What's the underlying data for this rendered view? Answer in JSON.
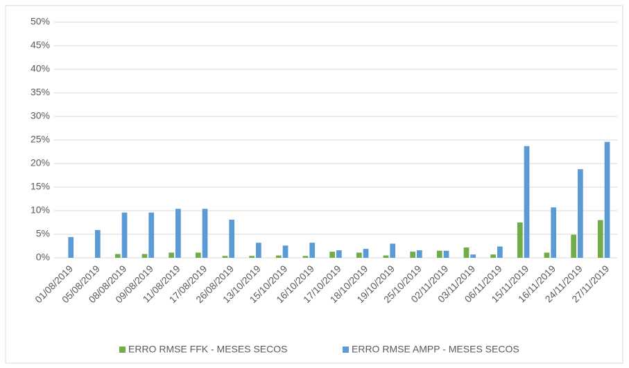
{
  "chart_data": {
    "type": "bar",
    "categories": [
      "01/08/2019",
      "05/08/2019",
      "08/08/2019",
      "09/08/2019",
      "11/08/2019",
      "17/08/2019",
      "26/08/2019",
      "13/10/2019",
      "15/10/2019",
      "16/10/2019",
      "17/10/2019",
      "18/10/2019",
      "19/10/2019",
      "25/10/2019",
      "02/11/2019",
      "03/11/2019",
      "06/11/2019",
      "15/11/2019",
      "16/11/2019",
      "24/11/2019",
      "27/11/2019"
    ],
    "series": [
      {
        "name": "ERRO RMSE FFK - MESES SECOS",
        "color": "#70ad47",
        "values": [
          0,
          0,
          0.8,
          0.8,
          1.1,
          1.1,
          0.4,
          0.4,
          0.5,
          0.4,
          1.3,
          1.1,
          0.5,
          1.3,
          1.5,
          2.2,
          0.7,
          7.5,
          1.1,
          4.9,
          8.0
        ]
      },
      {
        "name": "ERRO RMSE AMPP - MESES SECOS",
        "color": "#5b9bd5",
        "values": [
          4.4,
          5.9,
          9.6,
          9.6,
          10.4,
          10.4,
          8.1,
          3.2,
          2.6,
          3.2,
          1.6,
          1.9,
          3.0,
          1.6,
          1.5,
          0.7,
          2.4,
          23.7,
          10.7,
          18.8,
          24.6
        ]
      }
    ],
    "ylim": [
      0,
      50
    ],
    "yticks": [
      {
        "value": 0,
        "label": "0%"
      },
      {
        "value": 5,
        "label": "5%"
      },
      {
        "value": 10,
        "label": "10%"
      },
      {
        "value": 15,
        "label": "15%"
      },
      {
        "value": 20,
        "label": "20%"
      },
      {
        "value": 25,
        "label": "25%"
      },
      {
        "value": 30,
        "label": "30%"
      },
      {
        "value": 35,
        "label": "35%"
      },
      {
        "value": 40,
        "label": "40%"
      },
      {
        "value": 45,
        "label": "45%"
      },
      {
        "value": 50,
        "label": "50%"
      }
    ],
    "grid": true,
    "legend": "bottom"
  }
}
